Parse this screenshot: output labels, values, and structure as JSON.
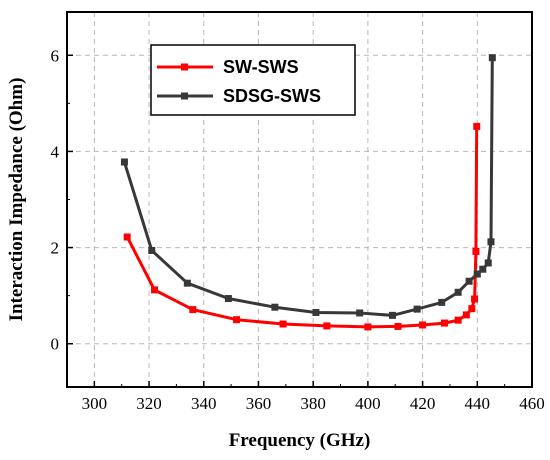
{
  "chart_data": {
    "type": "line",
    "title": "",
    "xlabel": "Frequency (GHz)",
    "ylabel": "Interaction Impedance (Ohm)",
    "xlim": [
      290,
      460
    ],
    "ylim": [
      -0.9,
      6.9
    ],
    "xticks": [
      300,
      320,
      340,
      360,
      380,
      400,
      420,
      440,
      460
    ],
    "yticks": [
      0,
      2,
      4,
      6
    ],
    "grid": true,
    "legend_position": "top-left",
    "series": [
      {
        "name": "SW-SWS",
        "color": "#ff0000",
        "marker": "square",
        "x": [
          312,
          322,
          336,
          352,
          369,
          385,
          400,
          411,
          420,
          428,
          433,
          436,
          438,
          439,
          439.5,
          439.8
        ],
        "y": [
          2.22,
          1.12,
          0.71,
          0.5,
          0.41,
          0.37,
          0.35,
          0.36,
          0.39,
          0.43,
          0.49,
          0.6,
          0.73,
          0.93,
          1.92,
          4.52
        ]
      },
      {
        "name": "SDSG-SWS",
        "color": "#383838",
        "marker": "square",
        "x": [
          311,
          321,
          334,
          349,
          366,
          381,
          397,
          409,
          418,
          427,
          433,
          437,
          440,
          442,
          444,
          445,
          445.5
        ],
        "y": [
          3.78,
          1.94,
          1.26,
          0.94,
          0.76,
          0.65,
          0.64,
          0.59,
          0.72,
          0.86,
          1.07,
          1.3,
          1.45,
          1.55,
          1.68,
          2.12,
          5.95
        ]
      }
    ]
  }
}
